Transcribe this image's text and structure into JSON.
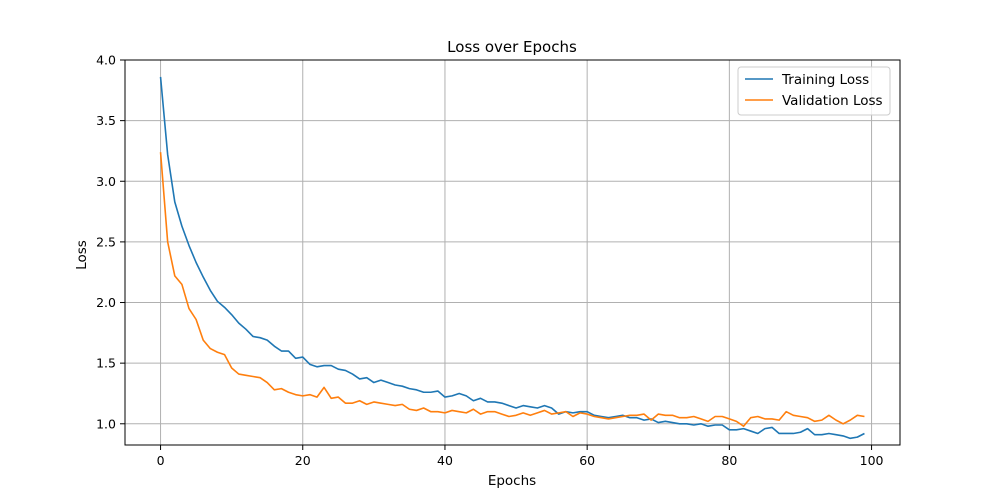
{
  "chart_data": {
    "type": "line",
    "title": "Loss over Epochs",
    "xlabel": "Epochs",
    "ylabel": "Loss",
    "xlim": [
      -5,
      104
    ],
    "ylim": [
      0.825,
      4.0
    ],
    "xticks": [
      0,
      20,
      40,
      60,
      80,
      100
    ],
    "xtick_labels": [
      "0",
      "20",
      "40",
      "60",
      "80",
      "100"
    ],
    "yticks": [
      1.0,
      1.5,
      2.0,
      2.5,
      3.0,
      3.5,
      4.0
    ],
    "ytick_labels": [
      "1.0",
      "1.5",
      "2.0",
      "2.5",
      "3.0",
      "3.5",
      "4.0"
    ],
    "grid": true,
    "legend_position": "top-right",
    "series": [
      {
        "name": "Training Loss",
        "color": "#1f77b4",
        "x": [
          0,
          1,
          2,
          3,
          4,
          5,
          6,
          7,
          8,
          9,
          10,
          11,
          12,
          13,
          14,
          15,
          16,
          17,
          18,
          19,
          20,
          21,
          22,
          23,
          24,
          25,
          26,
          27,
          28,
          29,
          30,
          31,
          32,
          33,
          34,
          35,
          36,
          37,
          38,
          39,
          40,
          41,
          42,
          43,
          44,
          45,
          46,
          47,
          48,
          49,
          50,
          51,
          52,
          53,
          54,
          55,
          56,
          57,
          58,
          59,
          60,
          61,
          62,
          63,
          64,
          65,
          66,
          67,
          68,
          69,
          70,
          71,
          72,
          73,
          74,
          75,
          76,
          77,
          78,
          79,
          80,
          81,
          82,
          83,
          84,
          85,
          86,
          87,
          88,
          89,
          90,
          91,
          92,
          93,
          94,
          95,
          96,
          97,
          98,
          99
        ],
        "values": [
          3.86,
          3.22,
          2.83,
          2.63,
          2.47,
          2.33,
          2.21,
          2.1,
          2.01,
          1.96,
          1.9,
          1.83,
          1.78,
          1.72,
          1.71,
          1.69,
          1.64,
          1.6,
          1.6,
          1.54,
          1.55,
          1.49,
          1.47,
          1.48,
          1.48,
          1.45,
          1.44,
          1.41,
          1.37,
          1.38,
          1.34,
          1.36,
          1.34,
          1.32,
          1.31,
          1.29,
          1.28,
          1.26,
          1.26,
          1.27,
          1.22,
          1.23,
          1.25,
          1.23,
          1.19,
          1.21,
          1.18,
          1.18,
          1.17,
          1.15,
          1.13,
          1.15,
          1.14,
          1.13,
          1.15,
          1.13,
          1.08,
          1.1,
          1.09,
          1.1,
          1.1,
          1.07,
          1.06,
          1.05,
          1.06,
          1.07,
          1.05,
          1.05,
          1.03,
          1.04,
          1.01,
          1.02,
          1.01,
          1.0,
          1.0,
          0.99,
          1.0,
          0.98,
          0.99,
          0.99,
          0.95,
          0.95,
          0.96,
          0.94,
          0.92,
          0.96,
          0.97,
          0.92,
          0.92,
          0.92,
          0.93,
          0.96,
          0.91,
          0.91,
          0.92,
          0.91,
          0.9,
          0.88,
          0.89,
          0.92
        ]
      },
      {
        "name": "Validation Loss",
        "color": "#ff7f0e",
        "x": [
          0,
          1,
          2,
          3,
          4,
          5,
          6,
          7,
          8,
          9,
          10,
          11,
          12,
          13,
          14,
          15,
          16,
          17,
          18,
          19,
          20,
          21,
          22,
          23,
          24,
          25,
          26,
          27,
          28,
          29,
          30,
          31,
          32,
          33,
          34,
          35,
          36,
          37,
          38,
          39,
          40,
          41,
          42,
          43,
          44,
          45,
          46,
          47,
          48,
          49,
          50,
          51,
          52,
          53,
          54,
          55,
          56,
          57,
          58,
          59,
          60,
          61,
          62,
          63,
          64,
          65,
          66,
          67,
          68,
          69,
          70,
          71,
          72,
          73,
          74,
          75,
          76,
          77,
          78,
          79,
          80,
          81,
          82,
          83,
          84,
          85,
          86,
          87,
          88,
          89,
          90,
          91,
          92,
          93,
          94,
          95,
          96,
          97,
          98,
          99
        ],
        "values": [
          3.24,
          2.5,
          2.22,
          2.15,
          1.95,
          1.86,
          1.69,
          1.62,
          1.59,
          1.57,
          1.46,
          1.41,
          1.4,
          1.39,
          1.38,
          1.34,
          1.28,
          1.29,
          1.26,
          1.24,
          1.23,
          1.24,
          1.22,
          1.3,
          1.21,
          1.22,
          1.17,
          1.17,
          1.19,
          1.16,
          1.18,
          1.17,
          1.16,
          1.15,
          1.16,
          1.12,
          1.11,
          1.13,
          1.1,
          1.1,
          1.09,
          1.11,
          1.1,
          1.09,
          1.12,
          1.08,
          1.1,
          1.1,
          1.08,
          1.06,
          1.07,
          1.09,
          1.07,
          1.09,
          1.11,
          1.08,
          1.09,
          1.1,
          1.06,
          1.09,
          1.08,
          1.06,
          1.05,
          1.04,
          1.05,
          1.06,
          1.07,
          1.07,
          1.08,
          1.03,
          1.08,
          1.07,
          1.07,
          1.05,
          1.05,
          1.06,
          1.04,
          1.02,
          1.06,
          1.06,
          1.04,
          1.02,
          0.98,
          1.05,
          1.06,
          1.04,
          1.04,
          1.03,
          1.1,
          1.07,
          1.06,
          1.05,
          1.02,
          1.03,
          1.07,
          1.03,
          1.0,
          1.03,
          1.07,
          1.06
        ]
      }
    ]
  }
}
